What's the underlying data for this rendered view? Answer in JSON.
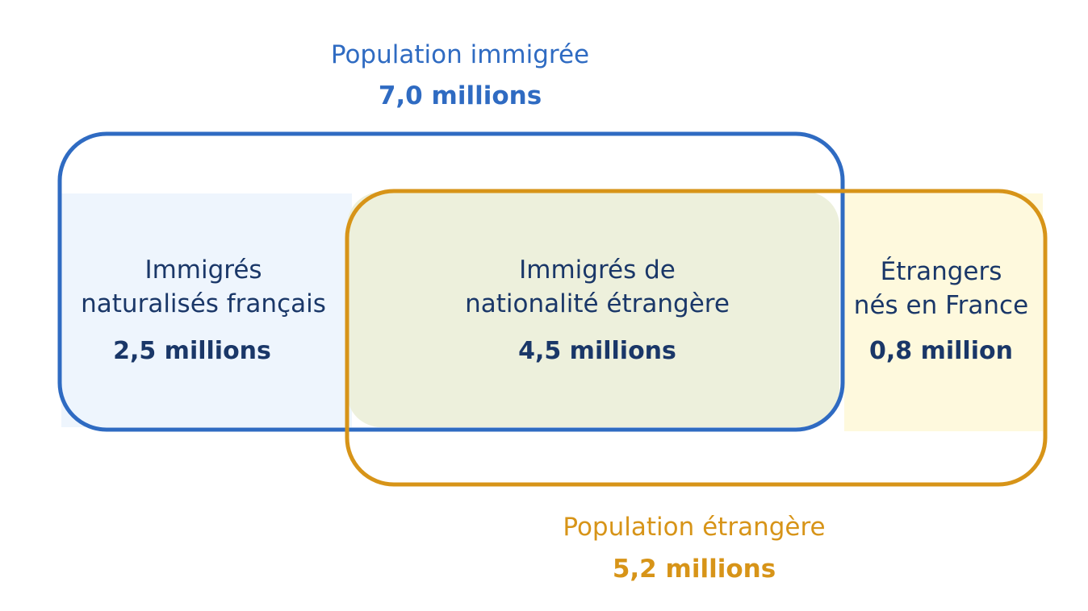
{
  "colors": {
    "immigrant": "#2f6bc2",
    "foreign": "#d79418",
    "text_dark": "#1a3768",
    "fill_naturalized": "#eef5fd",
    "fill_overlap": "#edf0dc",
    "fill_foreign_only": "#fef9dd"
  },
  "immigrant_population": {
    "title": "Population immigrée",
    "value": "7,0 millions"
  },
  "foreign_population": {
    "title": "Population étrangère",
    "value": "5,2 millions"
  },
  "regions": {
    "naturalized": {
      "line1": "Immigrés",
      "line2": "naturalisés français",
      "value": "2,5 millions"
    },
    "foreign_nationality": {
      "line1": "Immigrés de",
      "line2": "nationalité étrangère",
      "value": "4,5 millions"
    },
    "born_in_france": {
      "line1": "Étrangers",
      "line2": "nés en France",
      "value": "0,8 million"
    }
  }
}
